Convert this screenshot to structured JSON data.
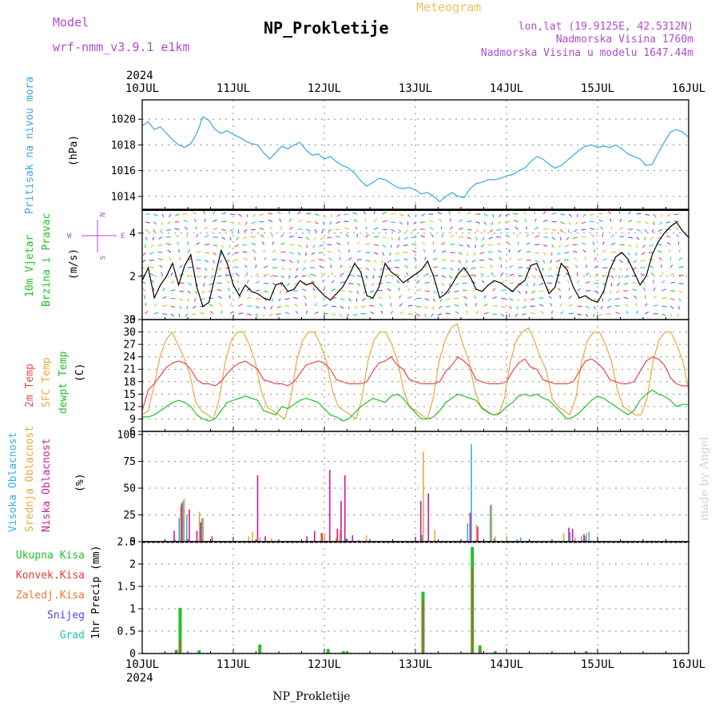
{
  "header": {
    "model_label": "Model",
    "model_name": "wrf-nmm_v3.9.1  e1km",
    "title": "NP_Prokletije",
    "meteogram_label": "Meteogram",
    "location": "lon,lat (19.9125E, 42.5312N)",
    "altitude": "Nadmorska Visina 1760m",
    "model_altitude": "Nadmorska Visina u modelu 1647.44m",
    "footer": "NP_Prokletije",
    "watermark": "made by Angel",
    "year": "2024"
  },
  "colors": {
    "pressure": "#3aa6e4",
    "temp2m": "#e84a4a",
    "sfc": "#e8a840",
    "dewpt": "#22c02a",
    "wind_label": "#22c02a",
    "purple": "#b04ccc",
    "high_cloud": "#3aaee0",
    "mid_cloud": "#e8a840",
    "low_cloud": "#cc1c9a",
    "total_precip": "#22c02a",
    "conv_precip": "#e83838",
    "frozen_precip": "#e87830",
    "snow": "#4a4ae0",
    "hail": "#20c0b0"
  },
  "days": [
    "10JUL",
    "11JUL",
    "12JUL",
    "13JUL",
    "14JUL",
    "15JUL",
    "16JUL"
  ],
  "chart_data": [
    {
      "type": "line",
      "name": "pressure",
      "ylabel": "Pritisak na nivou mora",
      "unit": "(hPa)",
      "ylim": [
        1013,
        1021.5
      ],
      "yticks": [
        1014,
        1016,
        1018,
        1020
      ],
      "series": [
        {
          "values": [
            1019.5,
            1019.8,
            1019.2,
            1019.4,
            1018.9,
            1018.4,
            1018.0,
            1017.8,
            1018.1,
            1018.9,
            1020.2,
            1019.9,
            1019.2,
            1018.9,
            1019.1,
            1018.8,
            1018.6,
            1018.3,
            1018.1,
            1018.0,
            1017.4,
            1016.9,
            1017.4,
            1017.9,
            1017.7,
            1018.0,
            1018.2,
            1017.6,
            1017.2,
            1017.3,
            1016.9,
            1017.1,
            1016.7,
            1016.4,
            1016.2,
            1015.8,
            1015.2,
            1014.8,
            1015.1,
            1015.4,
            1015.3,
            1015.0,
            1014.7,
            1014.6,
            1014.7,
            1014.5,
            1014.2,
            1014.3,
            1014.0,
            1013.6,
            1014.0,
            1014.3,
            1014.0,
            1013.9,
            1014.6,
            1015.0,
            1015.1,
            1015.3,
            1015.3,
            1015.4,
            1015.6,
            1015.7,
            1016.0,
            1016.2,
            1016.7,
            1017.1,
            1016.9,
            1016.5,
            1016.2,
            1016.4,
            1016.8,
            1017.2,
            1017.6,
            1017.9,
            1018.0,
            1017.8,
            1017.9,
            1017.8,
            1018.0,
            1017.7,
            1017.3,
            1017.1,
            1016.9,
            1016.4,
            1016.5,
            1017.4,
            1018.2,
            1019.0,
            1019.2,
            1019.0,
            1018.6
          ]
        }
      ]
    },
    {
      "type": "line",
      "name": "wind",
      "ylabel_1": "10m Vjetar",
      "ylabel_2": "Brzina i Pravac",
      "unit": "(m/s)",
      "compass": [
        "N",
        "W",
        "E",
        "S"
      ],
      "ylim": [
        0,
        5.1
      ],
      "yticks": [
        0,
        2,
        4
      ],
      "series": [
        {
          "name": "speed",
          "values": [
            1.8,
            2.4,
            1.0,
            1.6,
            2.0,
            2.6,
            1.6,
            2.5,
            3.0,
            1.5,
            0.6,
            0.8,
            2.0,
            3.2,
            2.6,
            1.6,
            1.1,
            1.6,
            1.3,
            1.2,
            1.0,
            0.9,
            1.6,
            1.7,
            1.3,
            1.4,
            1.8,
            1.6,
            1.7,
            1.4,
            1.1,
            0.9,
            1.2,
            1.5,
            2.0,
            2.6,
            2.2,
            1.1,
            1.0,
            1.5,
            2.6,
            2.2,
            2.0,
            1.7,
            1.9,
            2.1,
            2.3,
            2.7,
            2.0,
            1.0,
            1.2,
            1.6,
            2.1,
            2.4,
            2.0,
            1.4,
            1.3,
            1.6,
            1.8,
            1.7,
            1.5,
            1.3,
            1.6,
            1.8,
            2.5,
            2.6,
            1.9,
            1.2,
            1.5,
            2.6,
            2.3,
            1.5,
            1.0,
            1.1,
            0.9,
            0.8,
            1.3,
            2.3,
            2.9,
            3.1,
            2.8,
            2.2,
            1.6,
            2.0,
            3.0,
            3.6,
            4.0,
            4.3,
            4.5,
            4.1,
            3.8
          ]
        }
      ]
    },
    {
      "type": "line",
      "name": "temperature",
      "ylabel_1": "2m Temp",
      "ylabel_2": "SFC Temp",
      "ylabel_3": "dewpt Temp",
      "unit": "(C)",
      "ylim": [
        6,
        33
      ],
      "yticks": [
        6,
        9,
        12,
        15,
        18,
        21,
        24,
        27,
        30,
        33
      ],
      "series": [
        {
          "name": "2m",
          "values": [
            11,
            16,
            17.5,
            19.5,
            21.5,
            22.5,
            23,
            22.5,
            21,
            18.5,
            17.5,
            17.5,
            17,
            18,
            20,
            21.5,
            22.5,
            23,
            22,
            21,
            18.5,
            18,
            17.5,
            17.5,
            17,
            18,
            20,
            22,
            22.5,
            23,
            22.5,
            21,
            18.5,
            18,
            17.5,
            17.5,
            17.5,
            18,
            20.5,
            22.5,
            23,
            24,
            22,
            21,
            18.5,
            18,
            17.5,
            17.5,
            17.5,
            18,
            20.5,
            22,
            24,
            23,
            21.5,
            18.5,
            18,
            17.5,
            17.5,
            17.5,
            18,
            20.5,
            22.5,
            23.5,
            21.5,
            21,
            18.5,
            18,
            17.5,
            17.5,
            17.5,
            18,
            20.5,
            23,
            23.5,
            22.5,
            21,
            18.5,
            18,
            17.5,
            17.5,
            18,
            20.5,
            23,
            24,
            23.5,
            22,
            19,
            17.5,
            17,
            17
          ]
        },
        {
          "name": "sfc",
          "values": [
            10,
            11,
            17,
            24,
            28,
            30,
            27,
            24,
            20,
            13,
            11,
            10,
            9,
            14,
            23,
            28,
            30,
            30,
            27,
            23,
            16,
            12,
            11,
            10,
            9,
            14,
            23,
            28,
            30,
            30,
            27,
            23,
            16,
            12,
            11,
            10,
            9,
            14,
            23,
            28,
            30,
            30,
            27,
            23,
            16,
            12,
            11,
            10,
            9,
            14,
            23,
            28,
            31,
            32,
            27,
            23,
            16,
            12,
            11,
            10,
            10,
            14,
            23,
            28,
            30,
            31,
            28,
            24,
            21,
            14,
            12,
            11,
            10,
            14,
            23,
            28,
            30,
            30,
            27,
            23,
            16,
            12,
            11,
            10,
            10,
            14,
            23,
            28,
            30,
            30,
            27,
            23,
            16
          ]
        },
        {
          "name": "dewpt",
          "values": [
            9.5,
            9.5,
            10,
            11,
            12,
            13,
            13.5,
            13,
            12,
            10,
            9,
            8.5,
            9,
            11,
            13,
            13.5,
            14,
            14.5,
            14,
            13.5,
            11,
            10.5,
            10,
            12,
            11.5,
            12.5,
            13.5,
            14,
            13.5,
            13,
            11.5,
            10,
            9.5,
            8.5,
            9,
            10.5,
            12,
            13,
            14,
            13.5,
            13,
            14.5,
            15,
            14,
            12,
            10.5,
            9,
            9,
            9.5,
            11,
            13,
            14,
            15,
            14.5,
            14,
            13.5,
            11.5,
            10.5,
            10,
            10.5,
            12,
            13,
            14.5,
            15,
            14.5,
            15,
            14,
            13.5,
            12,
            10.5,
            9,
            9.5,
            10.5,
            12,
            13.5,
            14.5,
            14,
            13,
            12,
            11,
            10,
            11,
            13.5,
            15,
            16,
            15,
            14.5,
            13.5,
            12,
            12.5,
            12.5
          ]
        }
      ]
    },
    {
      "type": "bar",
      "name": "clouds",
      "ylabel_1": "Visoka Oblacnost",
      "ylabel_2": "Srednja Oblacnost",
      "ylabel_3": "Niska Oblacnost",
      "unit": "(%)",
      "ylim": [
        0,
        103
      ],
      "yticks": [
        0,
        25,
        50,
        75,
        100
      ],
      "series": [
        {
          "name": "high",
          "values": [
            [
              9,
              2
            ],
            [
              10,
              22
            ],
            [
              11,
              38
            ],
            [
              12,
              25
            ],
            [
              16,
              22
            ],
            [
              54,
              3
            ],
            [
              74,
              6
            ],
            [
              86,
              17
            ],
            [
              87,
              91
            ],
            [
              92,
              34
            ],
            [
              93,
              3
            ],
            [
              99,
              2
            ],
            [
              100,
              4
            ],
            [
              113,
              9
            ],
            [
              116,
              5
            ],
            [
              117,
              5
            ],
            [
              118,
              9
            ]
          ]
        },
        {
          "name": "mid",
          "values": [
            [
              10,
              33
            ],
            [
              11,
              40
            ],
            [
              15,
              28
            ],
            [
              16,
              22
            ],
            [
              28,
              5
            ],
            [
              29,
              9
            ],
            [
              31,
              4
            ],
            [
              34,
              3
            ],
            [
              47,
              8
            ],
            [
              48,
              8
            ],
            [
              51,
              4
            ],
            [
              52,
              11
            ],
            [
              57,
              2
            ],
            [
              59,
              6
            ],
            [
              74,
              84
            ],
            [
              77,
              11
            ],
            [
              88,
              16
            ],
            [
              92,
              35
            ],
            [
              93,
              5
            ],
            [
              96,
              5
            ],
            [
              111,
              8
            ],
            [
              114,
              4
            ],
            [
              117,
              8
            ]
          ]
        },
        {
          "name": "low",
          "values": [
            [
              8,
              10
            ],
            [
              10,
              36
            ],
            [
              12,
              30
            ],
            [
              14,
              10
            ],
            [
              15,
              18
            ],
            [
              18,
              5
            ],
            [
              30,
              62
            ],
            [
              32,
              5
            ],
            [
              43,
              5
            ],
            [
              45,
              10
            ],
            [
              47,
              8
            ],
            [
              49,
              67
            ],
            [
              51,
              12
            ],
            [
              52,
              38
            ],
            [
              53,
              62
            ],
            [
              55,
              6
            ],
            [
              73,
              38
            ],
            [
              75,
              45
            ],
            [
              86,
              27
            ],
            [
              88,
              14
            ],
            [
              112,
              13
            ],
            [
              113,
              12
            ],
            [
              116,
              7
            ]
          ]
        }
      ]
    },
    {
      "type": "bar",
      "name": "precipitation",
      "legend": [
        "Ukupna Kisa",
        "Konvek.Kisa",
        "Zaledj.Kisa",
        "Snijeg",
        "Grad"
      ],
      "ylabel": "1hr Precip (mm)",
      "ylim": [
        0,
        2.5
      ],
      "yticks": [
        0,
        0.5,
        1,
        1.5,
        2,
        2.5
      ],
      "series": [
        {
          "name": "total",
          "values": [
            [
              9,
              0.08
            ],
            [
              10,
              1.02
            ],
            [
              15,
              0.07
            ],
            [
              31,
              0.2
            ],
            [
              49,
              0.1
            ],
            [
              53,
              0.05
            ],
            [
              54,
              0.04
            ],
            [
              74,
              1.38
            ],
            [
              87,
              2.38
            ],
            [
              89,
              0.18
            ],
            [
              93,
              0.05
            ],
            [
              117,
              0.05
            ]
          ]
        },
        {
          "name": "conv",
          "values": [
            [
              9,
              0.05
            ],
            [
              10,
              0.3
            ],
            [
              74,
              1.2
            ],
            [
              87,
              1.9
            ],
            [
              89,
              0.1
            ]
          ]
        }
      ]
    }
  ]
}
